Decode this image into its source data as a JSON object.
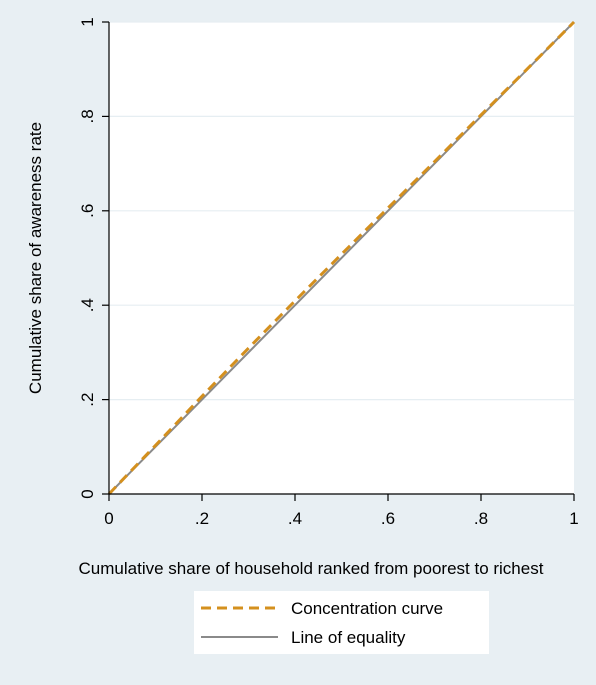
{
  "chart_data": {
    "type": "line",
    "title": "",
    "xlabel": "Cumulative share of household ranked from poorest to richest",
    "ylabel": "Cumulative share of awareness rate",
    "xlim": [
      0,
      1
    ],
    "ylim": [
      0,
      1
    ],
    "xticks": [
      {
        "value": 0,
        "label": "0"
      },
      {
        "value": 0.2,
        "label": ".2"
      },
      {
        "value": 0.4,
        "label": ".4"
      },
      {
        "value": 0.6,
        "label": ".6"
      },
      {
        "value": 0.8,
        "label": ".8"
      },
      {
        "value": 1,
        "label": "1"
      }
    ],
    "yticks": [
      {
        "value": 0,
        "label": "0"
      },
      {
        "value": 0.2,
        "label": ".2"
      },
      {
        "value": 0.4,
        "label": ".4"
      },
      {
        "value": 0.6,
        "label": ".6"
      },
      {
        "value": 0.8,
        "label": ".8"
      },
      {
        "value": 1,
        "label": "1"
      }
    ],
    "grid": true,
    "legend_position": "bottom",
    "series": [
      {
        "name": "Concentration curve",
        "style": "dashed",
        "color": "#d4901e",
        "x": [
          0,
          0.1,
          0.2,
          0.3,
          0.4,
          0.5,
          0.6,
          0.7,
          0.8,
          0.9,
          1
        ],
        "y": [
          0,
          0.103,
          0.207,
          0.309,
          0.409,
          0.508,
          0.606,
          0.704,
          0.803,
          0.901,
          1
        ]
      },
      {
        "name": "Line of equality",
        "style": "solid",
        "color": "#8a8a8a",
        "x": [
          0,
          1
        ],
        "y": [
          0,
          1
        ]
      }
    ]
  },
  "colors": {
    "background": "#e8eff3",
    "plot_area": "#ffffff",
    "grid": "#e6eef2"
  }
}
